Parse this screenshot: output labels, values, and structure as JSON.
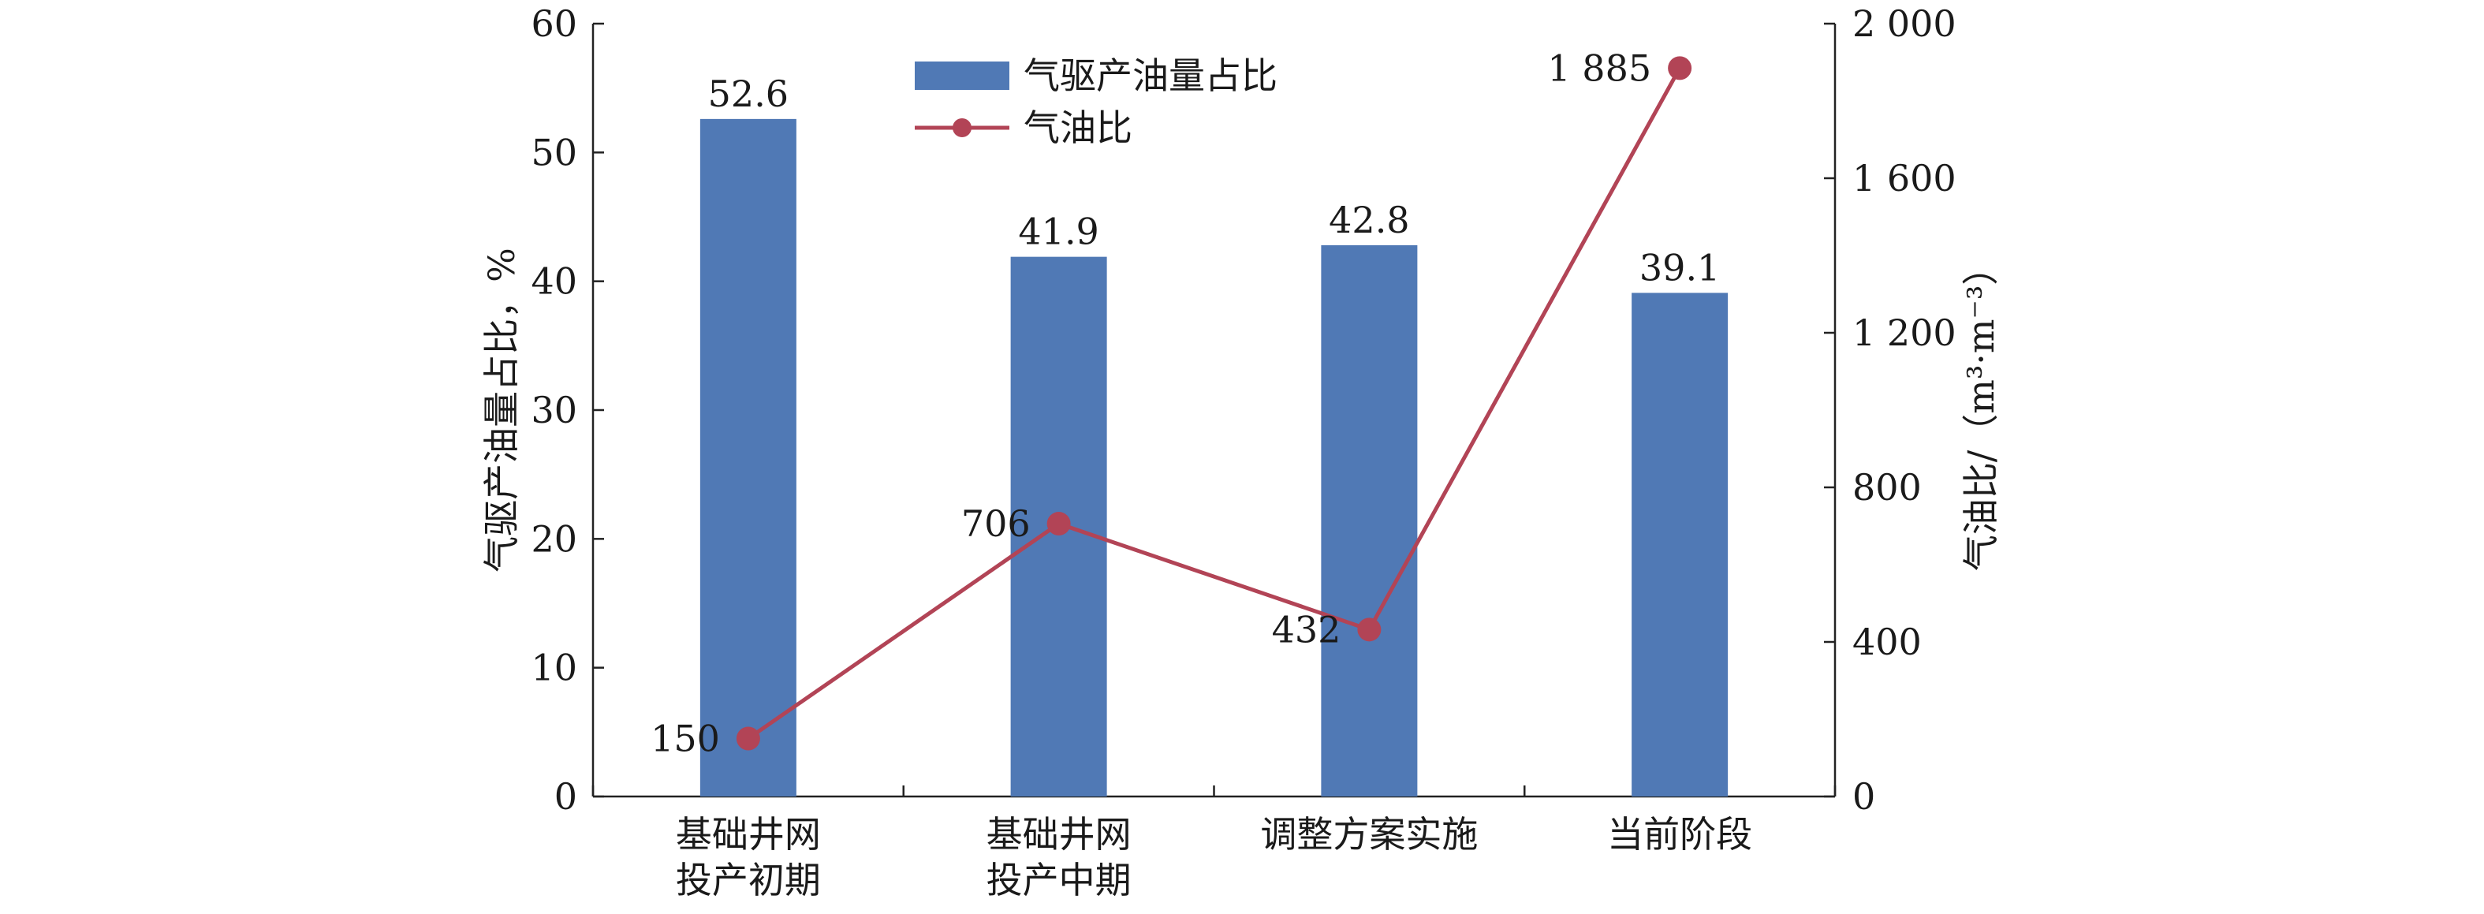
{
  "chart_data": {
    "type": "bar",
    "categories": [
      [
        "基础井网",
        "投产初期"
      ],
      [
        "基础井网",
        "投产中期"
      ],
      [
        "调整方案实施"
      ],
      [
        "当前阶段"
      ]
    ],
    "series": [
      {
        "name": "气驱产油量占比",
        "type": "bar",
        "axis": "left",
        "values": [
          52.6,
          41.9,
          42.8,
          39.1
        ],
        "labels": [
          "52.6",
          "41.9",
          "42.8",
          "39.1"
        ],
        "color": "#5079B5"
      },
      {
        "name": "气油比",
        "type": "line",
        "axis": "right",
        "values": [
          150,
          706,
          432,
          1885
        ],
        "labels": [
          "150",
          "706",
          "432",
          "1 885"
        ],
        "color": "#B24456"
      }
    ],
    "y_left": {
      "label": "气驱产油量占比，%",
      "range": [
        0,
        60
      ],
      "ticks": [
        0,
        10,
        20,
        30,
        40,
        50,
        60
      ],
      "tick_labels": [
        "0",
        "10",
        "20",
        "30",
        "40",
        "50",
        "60"
      ]
    },
    "y_right": {
      "label": "气油比/（m³·m⁻³）",
      "range": [
        0,
        2000
      ],
      "ticks": [
        0,
        400,
        800,
        1200,
        1600,
        2000
      ],
      "tick_labels": [
        "0",
        "400",
        "800",
        "1 200",
        "1 600",
        "2 000"
      ]
    },
    "grid": false,
    "legend_position": "top-center"
  }
}
